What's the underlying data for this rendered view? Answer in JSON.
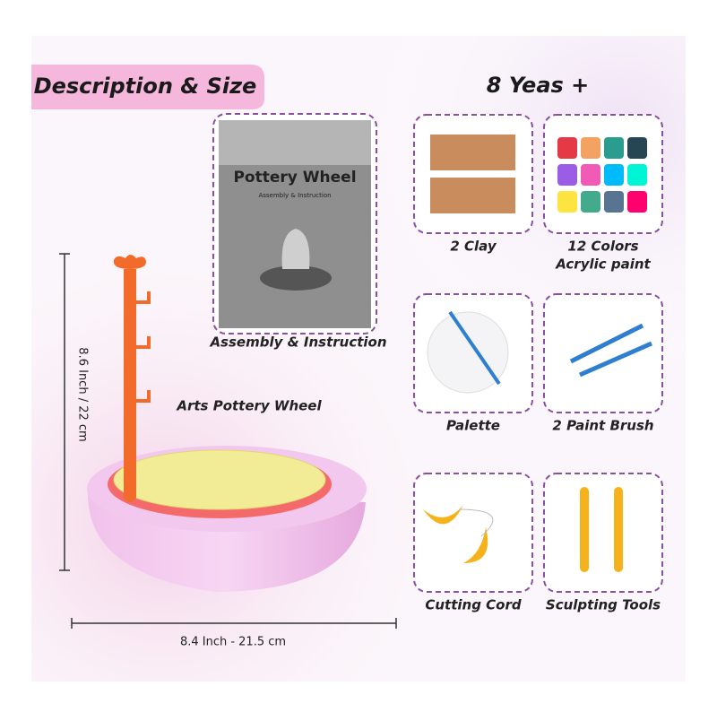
{
  "header": {
    "title": "Description & Size",
    "age": "8 Yeas +"
  },
  "manual": {
    "title": "Pottery Wheel",
    "subtitle": "Assembly & Instruction",
    "caption": "Assembly & Instruction"
  },
  "product": {
    "label": "Arts Pottery Wheel",
    "height": "8.6 Inch / 22 cm",
    "width": "8.4 Inch - 21.5 cm"
  },
  "items": [
    {
      "lines": [
        "2 Clay"
      ]
    },
    {
      "lines": [
        "12 Colors",
        "Acrylic paint"
      ]
    },
    {
      "lines": [
        "Palette"
      ]
    },
    {
      "lines": [
        "2 Paint Brush"
      ]
    },
    {
      "lines": [
        "Cutting Cord"
      ]
    },
    {
      "lines": [
        "Sculpting Tools"
      ]
    }
  ]
}
